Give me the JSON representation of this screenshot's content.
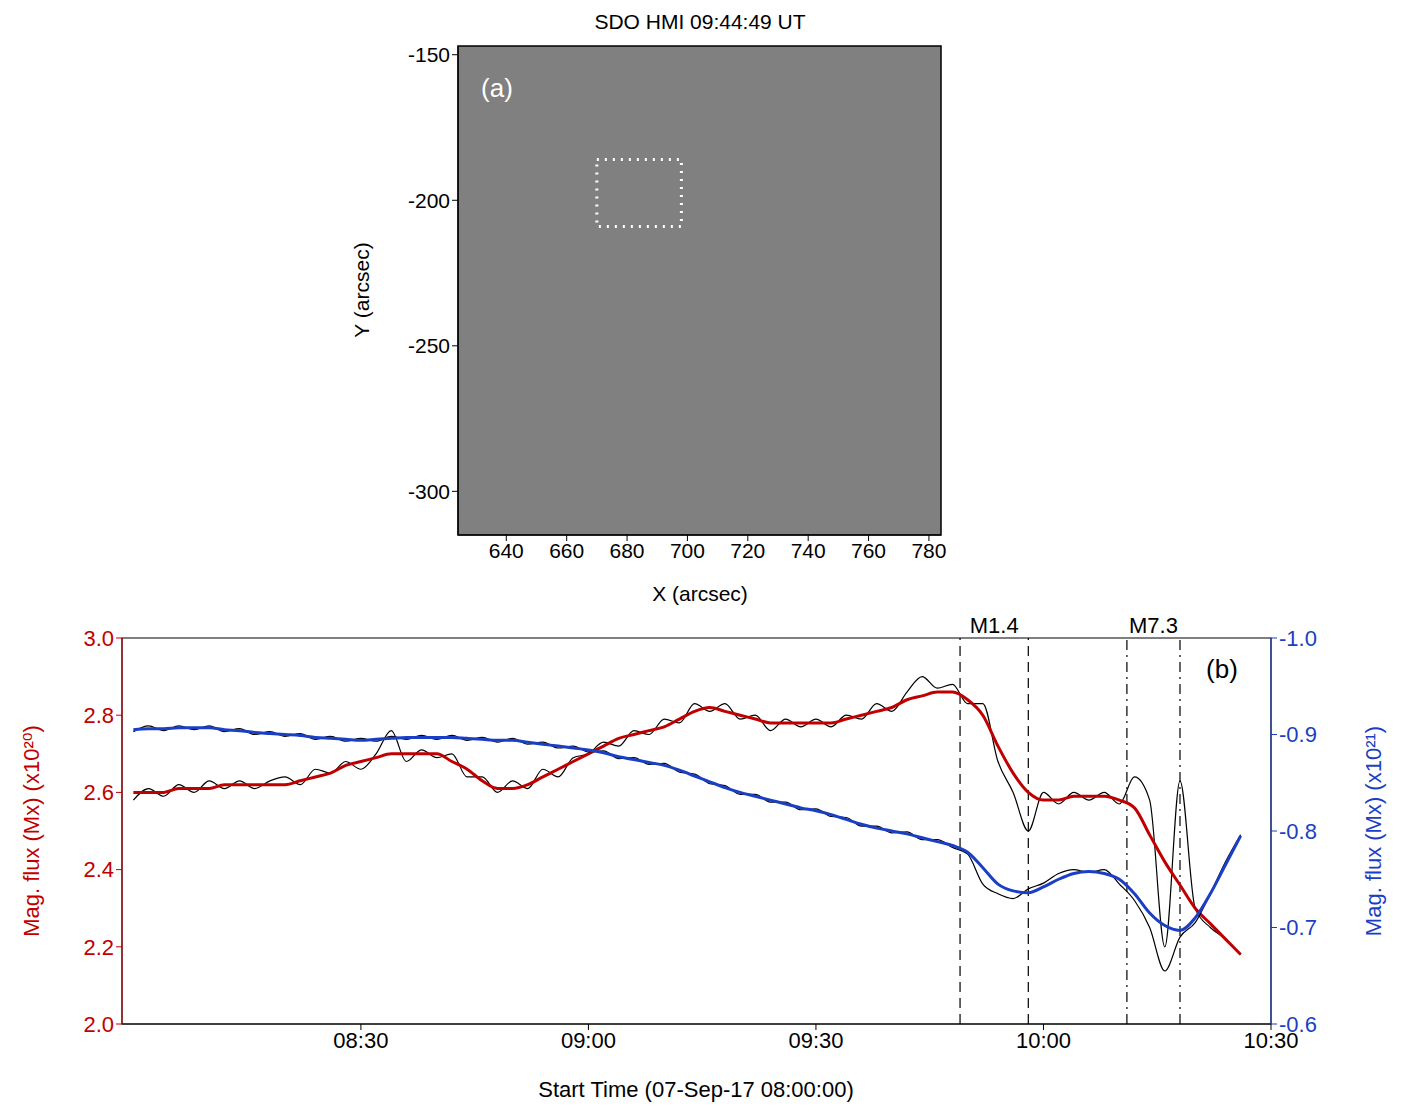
{
  "chart_data": [
    {
      "type": "image",
      "title": "SDO HMI 09:44:49 UT",
      "panel_label": "(a)",
      "xlabel": "X (arcsec)",
      "ylabel": "Y (arcsec)",
      "color": "#808080",
      "xlim": [
        624,
        784
      ],
      "xticks": [
        640,
        660,
        680,
        700,
        720,
        740,
        760,
        780
      ],
      "ylim": [
        -315,
        -147
      ],
      "yticks": [
        -300,
        -250,
        -200,
        -150
      ],
      "box": {
        "x": [
          670,
          698
        ],
        "y": [
          -209,
          -186
        ],
        "line_style": "dotted",
        "color": "#ffffff"
      }
    },
    {
      "type": "line",
      "panel_label": "(b)",
      "xlabel": "Start Time (07-Sep-17 08:00:00)",
      "ylabel": "Mag. flux (Mx) (x10²⁰)",
      "y2label": "Mag. flux (Mx) (x10²¹)",
      "xlim": [
        -1.5,
        150
      ],
      "xticks": [
        {
          "value": 30,
          "label": "08:30"
        },
        {
          "value": 60,
          "label": "09:00"
        },
        {
          "value": 90,
          "label": "09:30"
        },
        {
          "value": 120,
          "label": "10:00"
        },
        {
          "value": 150,
          "label": "10:30"
        }
      ],
      "ylim": [
        2,
        3
      ],
      "yticks": [
        {
          "value": 2,
          "label": "2.0"
        },
        2.2,
        2.4,
        2.6,
        2.8,
        {
          "value": 3,
          "label": "3.0"
        }
      ],
      "y2lim": [
        -0.6,
        -1.0
      ],
      "y2ticks": [
        {
          "value": -1,
          "label": "-1.0"
        },
        -0.9,
        -0.8,
        -0.7,
        -0.6
      ],
      "x": [
        0,
        2,
        4,
        6,
        8,
        10,
        12,
        14,
        16,
        18,
        20,
        22,
        24,
        26,
        28,
        30,
        32,
        34,
        36,
        38,
        40,
        42,
        44,
        46,
        48,
        50,
        52,
        54,
        56,
        58,
        60,
        62,
        64,
        66,
        68,
        70,
        72,
        74,
        76,
        78,
        80,
        82,
        84,
        86,
        88,
        90,
        92,
        94,
        96,
        98,
        100,
        102,
        104,
        106,
        108,
        110,
        112,
        114,
        116,
        118,
        120,
        122,
        124,
        126,
        128,
        130,
        132,
        134,
        136,
        138,
        140,
        142,
        144,
        146
      ],
      "series": [
        {
          "color": "#000000",
          "values": [
            2.58,
            2.61,
            2.59,
            2.62,
            2.6,
            2.63,
            2.61,
            2.63,
            2.61,
            2.63,
            2.64,
            2.62,
            2.66,
            2.65,
            2.68,
            2.66,
            2.7,
            2.76,
            2.68,
            2.71,
            2.69,
            2.7,
            2.64,
            2.64,
            2.6,
            2.63,
            2.61,
            2.66,
            2.64,
            2.69,
            2.7,
            2.73,
            2.72,
            2.76,
            2.75,
            2.79,
            2.78,
            2.83,
            2.81,
            2.83,
            2.79,
            2.8,
            2.76,
            2.79,
            2.77,
            2.79,
            2.77,
            2.8,
            2.79,
            2.83,
            2.81,
            2.86,
            2.9,
            2.87,
            2.88,
            2.83,
            2.83,
            2.68,
            2.6,
            2.5,
            2.6,
            2.57,
            2.6,
            2.58,
            2.6,
            2.57,
            2.64,
            2.58,
            2.2,
            2.63,
            2.3,
            2.25,
            2.22,
            2.18
          ]
        },
        {
          "color": "#c00000",
          "values": [
            2.6,
            2.6,
            2.6,
            2.61,
            2.61,
            2.61,
            2.62,
            2.62,
            2.62,
            2.62,
            2.62,
            2.63,
            2.64,
            2.65,
            2.67,
            2.68,
            2.69,
            2.7,
            2.7,
            2.7,
            2.7,
            2.68,
            2.66,
            2.63,
            2.61,
            2.61,
            2.62,
            2.64,
            2.66,
            2.68,
            2.7,
            2.72,
            2.74,
            2.75,
            2.76,
            2.77,
            2.79,
            2.81,
            2.82,
            2.81,
            2.8,
            2.79,
            2.78,
            2.78,
            2.78,
            2.78,
            2.78,
            2.79,
            2.8,
            2.81,
            2.82,
            2.84,
            2.85,
            2.86,
            2.86,
            2.84,
            2.8,
            2.72,
            2.65,
            2.6,
            2.58,
            2.58,
            2.59,
            2.59,
            2.59,
            2.58,
            2.56,
            2.49,
            2.42,
            2.36,
            2.3,
            2.26,
            2.22,
            2.18
          ]
        },
        {
          "color": "#000000",
          "axis": "y2",
          "values": [
            -0.903,
            -0.909,
            -0.904,
            -0.909,
            -0.905,
            -0.909,
            -0.903,
            -0.906,
            -0.9,
            -0.903,
            -0.898,
            -0.901,
            -0.895,
            -0.898,
            -0.893,
            -0.896,
            -0.893,
            -0.898,
            -0.895,
            -0.899,
            -0.895,
            -0.899,
            -0.894,
            -0.897,
            -0.892,
            -0.896,
            -0.89,
            -0.892,
            -0.886,
            -0.888,
            -0.882,
            -0.883,
            -0.875,
            -0.876,
            -0.869,
            -0.87,
            -0.861,
            -0.859,
            -0.849,
            -0.847,
            -0.838,
            -0.838,
            -0.83,
            -0.83,
            -0.822,
            -0.823,
            -0.815,
            -0.814,
            -0.805,
            -0.805,
            -0.798,
            -0.799,
            -0.791,
            -0.791,
            -0.783,
            -0.776,
            -0.745,
            -0.735,
            -0.73,
            -0.74,
            -0.746,
            -0.756,
            -0.76,
            -0.757,
            -0.76,
            -0.745,
            -0.728,
            -0.7,
            -0.655,
            -0.69,
            -0.705,
            -0.735,
            -0.768,
            -0.796
          ]
        },
        {
          "color": "#1a3fc4",
          "axis": "y2",
          "values": [
            -0.905,
            -0.906,
            -0.906,
            -0.907,
            -0.907,
            -0.907,
            -0.905,
            -0.904,
            -0.902,
            -0.901,
            -0.9,
            -0.899,
            -0.897,
            -0.896,
            -0.895,
            -0.894,
            -0.895,
            -0.896,
            -0.897,
            -0.897,
            -0.897,
            -0.897,
            -0.896,
            -0.895,
            -0.894,
            -0.894,
            -0.892,
            -0.89,
            -0.888,
            -0.886,
            -0.884,
            -0.881,
            -0.877,
            -0.874,
            -0.871,
            -0.868,
            -0.863,
            -0.857,
            -0.851,
            -0.845,
            -0.84,
            -0.836,
            -0.832,
            -0.828,
            -0.824,
            -0.821,
            -0.817,
            -0.812,
            -0.807,
            -0.803,
            -0.8,
            -0.797,
            -0.793,
            -0.789,
            -0.785,
            -0.778,
            -0.762,
            -0.745,
            -0.738,
            -0.736,
            -0.742,
            -0.75,
            -0.756,
            -0.758,
            -0.756,
            -0.75,
            -0.735,
            -0.715,
            -0.702,
            -0.697,
            -0.71,
            -0.735,
            -0.765,
            -0.795
          ]
        }
      ],
      "flares": [
        {
          "label": "M1.4",
          "start": 109,
          "end": 118,
          "line_style": "dashed"
        },
        {
          "label": "M7.3",
          "start": 131,
          "end": 138,
          "line_style": "dashdot"
        }
      ]
    }
  ]
}
